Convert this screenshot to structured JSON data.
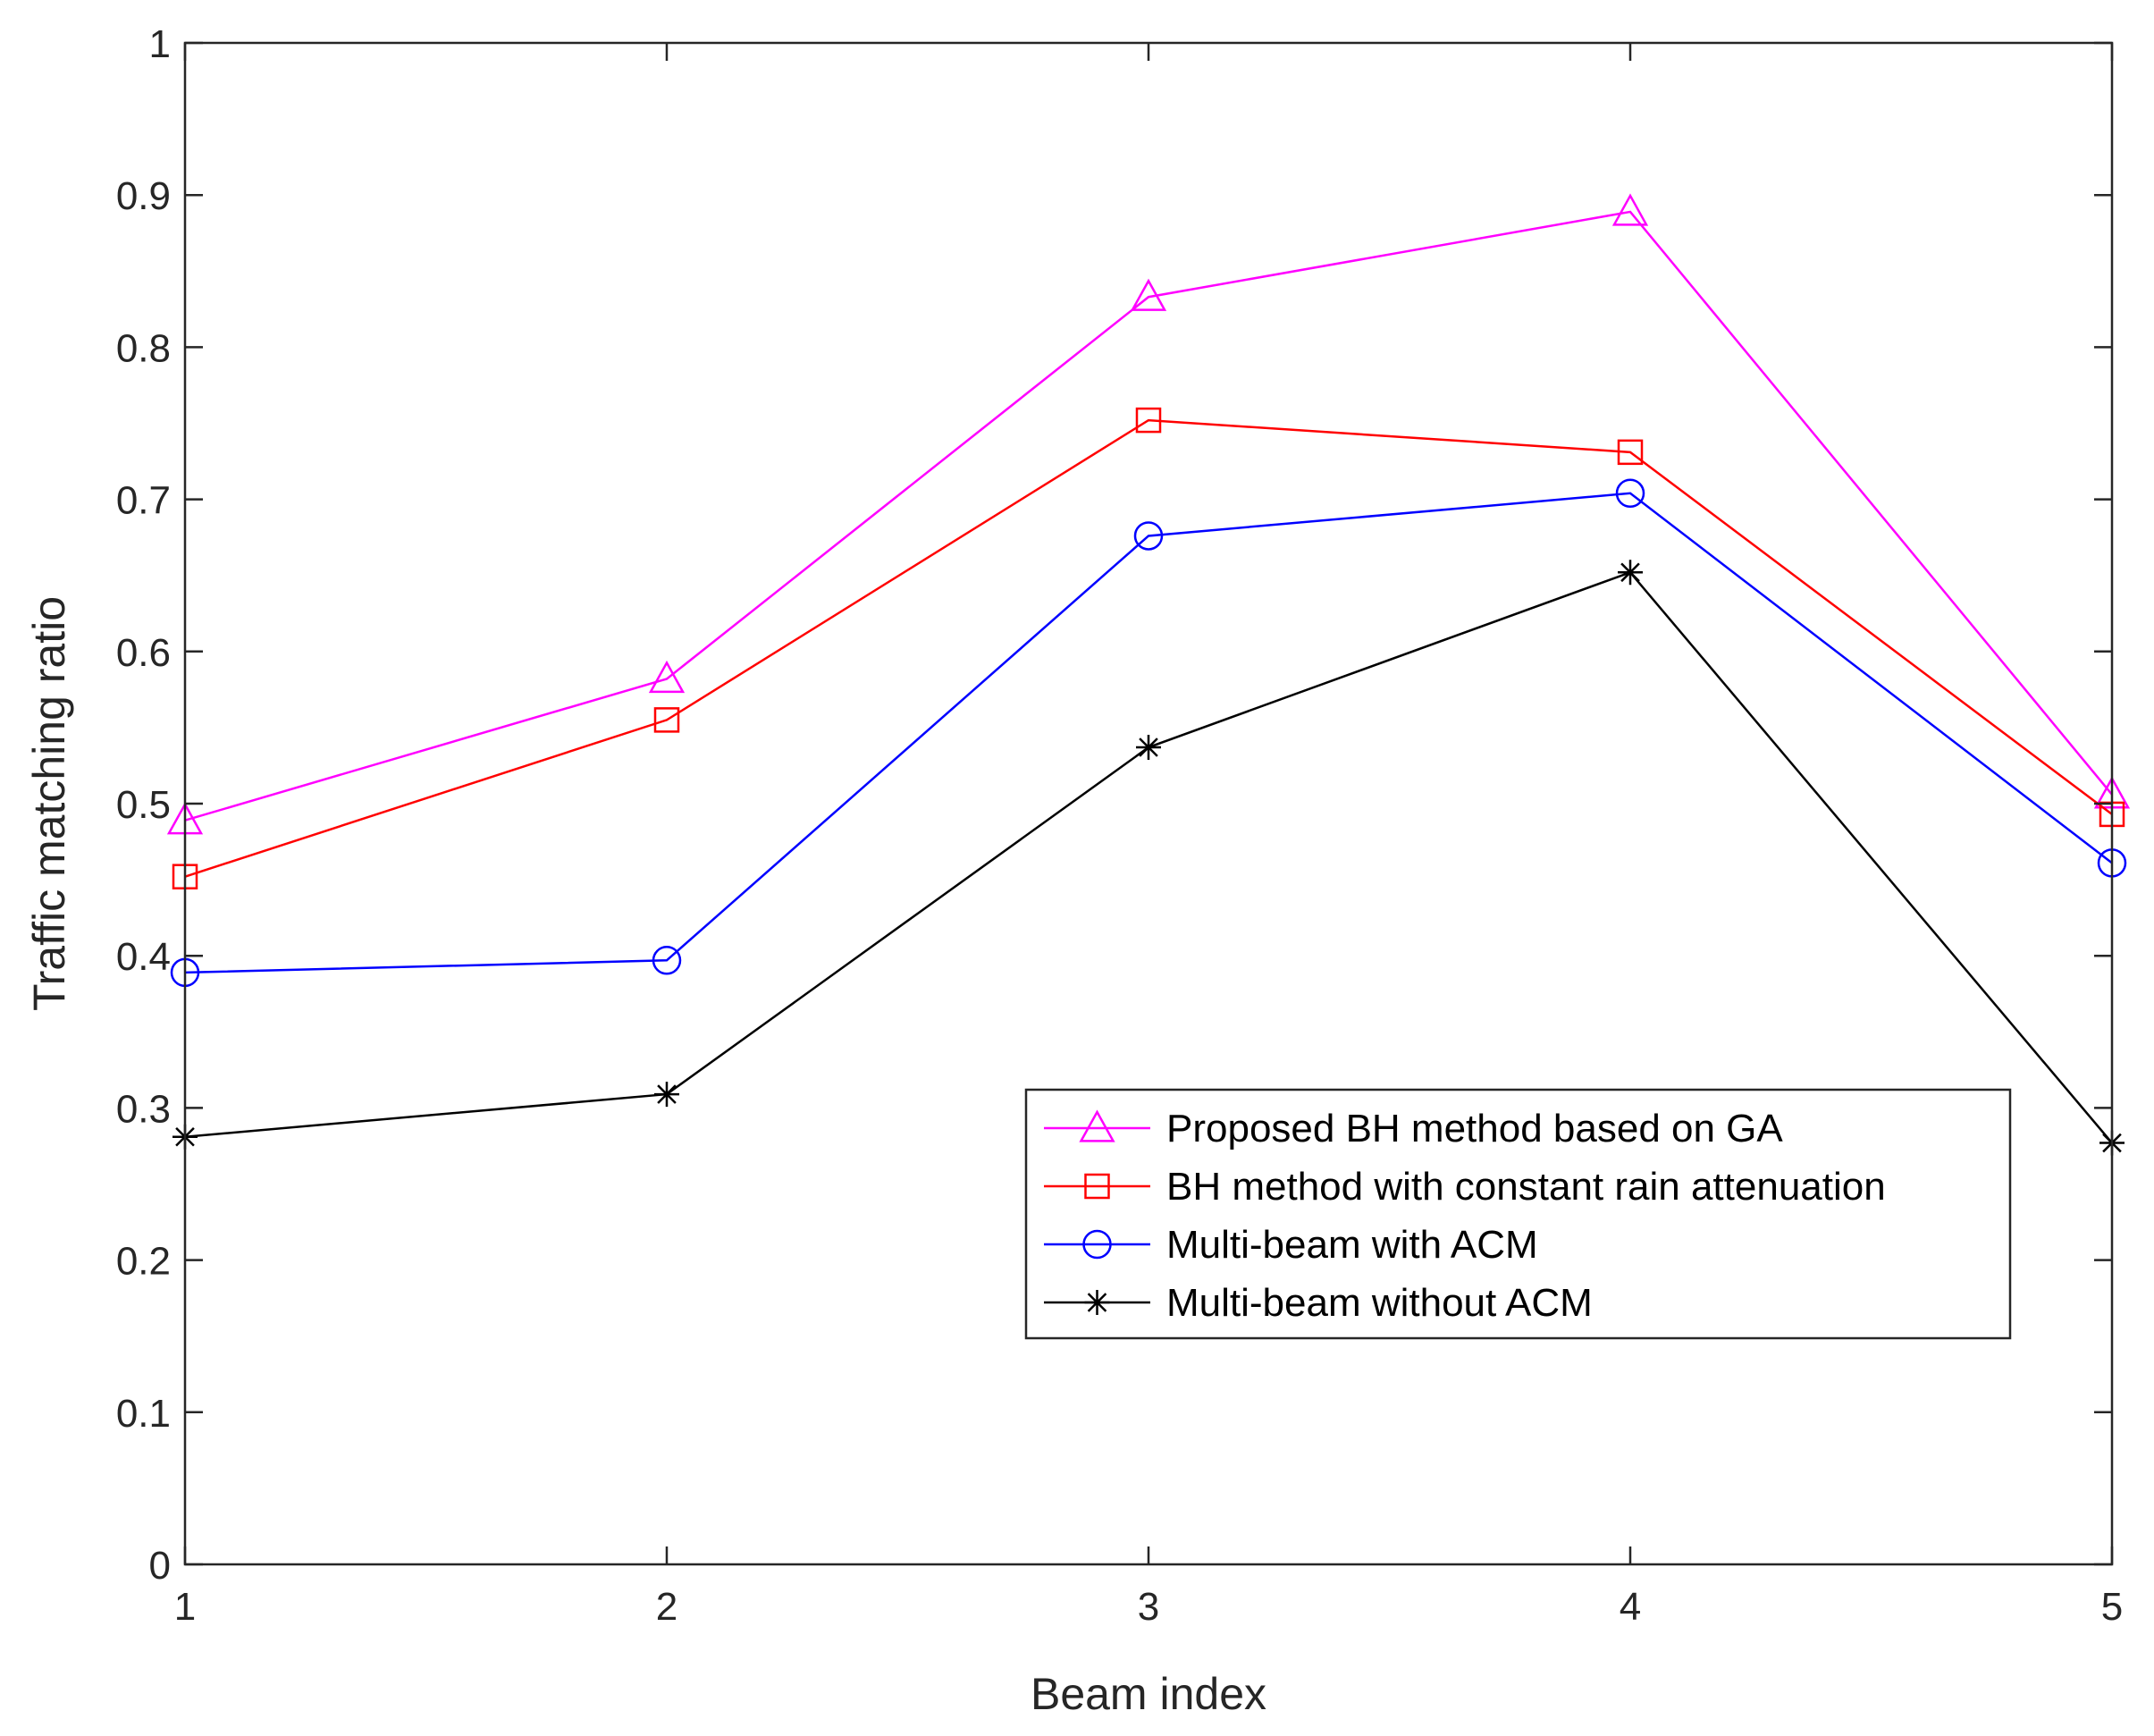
{
  "chart_data": {
    "type": "line",
    "title": "",
    "xlabel": "Beam index",
    "ylabel": "Traffic matching ratio",
    "x": [
      1,
      2,
      3,
      4,
      5
    ],
    "xlim": [
      1,
      5
    ],
    "ylim": [
      0,
      1
    ],
    "xticks": [
      "1",
      "2",
      "3",
      "4",
      "5"
    ],
    "yticks": [
      "0",
      "0.1",
      "0.2",
      "0.3",
      "0.4",
      "0.5",
      "0.6",
      "0.7",
      "0.8",
      "0.9",
      "1"
    ],
    "grid": false,
    "legend_position": "lower-right",
    "series": [
      {
        "name": "Proposed BH method based on GA",
        "color": "#ff00ff",
        "marker": "triangle",
        "values": [
          0.489,
          0.582,
          0.833,
          0.889,
          0.506
        ]
      },
      {
        "name": "BH method with constant rain attenuation",
        "color": "#ff0000",
        "marker": "square",
        "values": [
          0.452,
          0.555,
          0.752,
          0.731,
          0.493
        ]
      },
      {
        "name": "Multi-beam with ACM",
        "color": "#0000ff",
        "marker": "circle",
        "values": [
          0.389,
          0.397,
          0.676,
          0.704,
          0.461
        ]
      },
      {
        "name": "Multi-beam without ACM",
        "color": "#000000",
        "marker": "asterisk",
        "values": [
          0.281,
          0.309,
          0.537,
          0.652,
          0.277
        ]
      }
    ]
  }
}
